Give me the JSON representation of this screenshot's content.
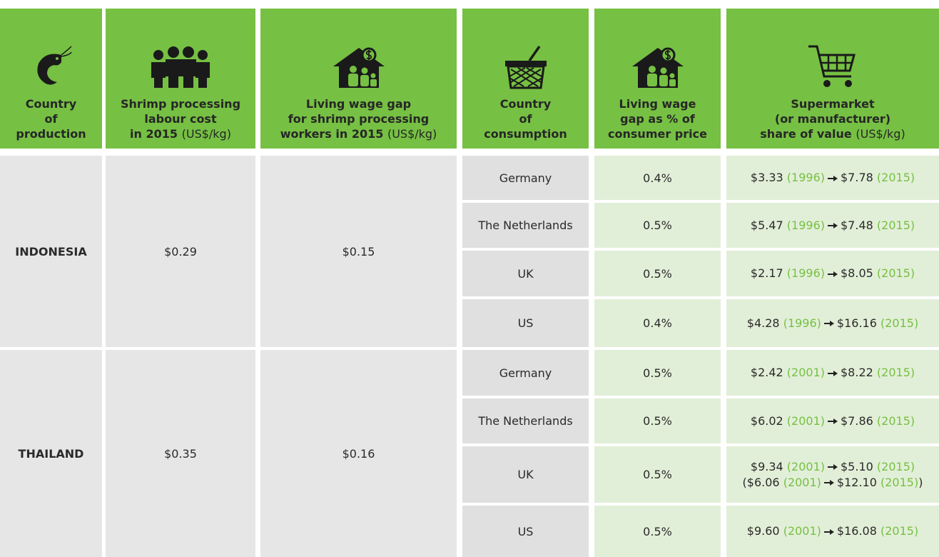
{
  "header": [
    {
      "lines": [
        "Country",
        "of",
        "production"
      ]
    },
    {
      "lines": [
        "Shrimp processing",
        "labour cost",
        "in 2015"
      ],
      "unit": "(US$/kg)"
    },
    {
      "lines": [
        "Living wage gap",
        "for shrimp processing",
        "workers in 2015"
      ],
      "unit": "(US$/kg)"
    },
    {
      "lines": [
        "Country",
        "of",
        "consumption"
      ]
    },
    {
      "lines": [
        "Living wage",
        "gap as % of",
        "consumer price"
      ]
    },
    {
      "lines": [
        "Supermarket",
        "(or manufacturer)",
        "share of value"
      ],
      "unit": "(US$/kg)"
    }
  ],
  "groups": [
    {
      "country": "INDONESIA",
      "labour_cost": "$0.29",
      "wage_gap": "$0.15",
      "rows": [
        {
          "consumer": "Germany",
          "gap_pct": "0.4%",
          "share": [
            {
              "from": "$3.33",
              "from_year": "(1996)",
              "to": "$7.78",
              "to_year": "(2015)"
            }
          ]
        },
        {
          "consumer": "The Netherlands",
          "gap_pct": "0.5%",
          "share": [
            {
              "from": "$5.47",
              "from_year": "(1996)",
              "to": "$7.48",
              "to_year": "(2015)"
            }
          ]
        },
        {
          "consumer": "UK",
          "gap_pct": "0.5%",
          "share": [
            {
              "from": "$2.17",
              "from_year": "(1996)",
              "to": "$8.05",
              "to_year": "(2015)"
            }
          ]
        },
        {
          "consumer": "US",
          "gap_pct": "0.4%",
          "share": [
            {
              "from": "$4.28",
              "from_year": "(1996)",
              "to": "$16.16",
              "to_year": "(2015)"
            }
          ]
        }
      ]
    },
    {
      "country": "THAILAND",
      "labour_cost": "$0.35",
      "wage_gap": "$0.16",
      "rows": [
        {
          "consumer": "Germany",
          "gap_pct": "0.5%",
          "share": [
            {
              "from": "$2.42",
              "from_year": "(2001)",
              "to": "$8.22",
              "to_year": "(2015)"
            }
          ]
        },
        {
          "consumer": "The Netherlands",
          "gap_pct": "0.5%",
          "share": [
            {
              "from": "$6.02",
              "from_year": "(2001)",
              "to": "$7.86",
              "to_year": "(2015)"
            }
          ]
        },
        {
          "consumer": "UK",
          "gap_pct": "0.5%",
          "share": [
            {
              "from": "$9.34",
              "from_year": "(2001)",
              "to": "$5.10",
              "to_year": "(2015)"
            },
            {
              "open": "(",
              "from": "$6.06",
              "from_year": "(2001)",
              "to": "$12.10",
              "to_year": "(2015)",
              "close": ")"
            }
          ]
        },
        {
          "consumer": "US",
          "gap_pct": "0.5%",
          "share": [
            {
              "from": "$9.60",
              "from_year": "(2001)",
              "to": "$16.08",
              "to_year": "(2015)"
            }
          ]
        }
      ]
    }
  ]
}
